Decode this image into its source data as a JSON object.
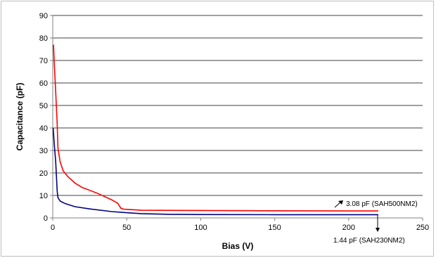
{
  "chart_data": {
    "type": "line",
    "title": "",
    "xlabel": "Bias (V)",
    "ylabel": "Capacitance (pF)",
    "xlim": [
      0,
      250
    ],
    "ylim": [
      0,
      90
    ],
    "x_ticks": [
      0,
      50,
      100,
      150,
      200,
      250
    ],
    "y_ticks": [
      0,
      10,
      20,
      30,
      40,
      50,
      60,
      70,
      80,
      90
    ],
    "x_tick_labels": [
      "0",
      "50",
      "100",
      "150",
      "200",
      "250"
    ],
    "y_tick_labels": [
      "0",
      "10",
      "20",
      "30",
      "40",
      "50",
      "60",
      "70",
      "80",
      "90"
    ],
    "grid": "horizontal",
    "legend": "none",
    "series": [
      {
        "color": "#ff0000",
        "points": [
          [
            0.5,
            77
          ],
          [
            1,
            69
          ],
          [
            2,
            56
          ],
          [
            3,
            42
          ],
          [
            3.5,
            31
          ],
          [
            5,
            25
          ],
          [
            7,
            21
          ],
          [
            10,
            18.5
          ],
          [
            15,
            15.5
          ],
          [
            20,
            13.5
          ],
          [
            30,
            11
          ],
          [
            40,
            8
          ],
          [
            44,
            6.5
          ],
          [
            46,
            4.3
          ],
          [
            48,
            3.9
          ],
          [
            50,
            3.8
          ],
          [
            60,
            3.4
          ],
          [
            100,
            3.3
          ],
          [
            150,
            3.2
          ],
          [
            200,
            3.1
          ],
          [
            220,
            3.08
          ]
        ]
      },
      {
        "color": "#000080",
        "points": [
          [
            0.3,
            40
          ],
          [
            1,
            33
          ],
          [
            2,
            25
          ],
          [
            3,
            12
          ],
          [
            3.5,
            9
          ],
          [
            5,
            7.5
          ],
          [
            8,
            6.5
          ],
          [
            15,
            5
          ],
          [
            25,
            4
          ],
          [
            40,
            2.8
          ],
          [
            50,
            2.3
          ],
          [
            60,
            1.9
          ],
          [
            80,
            1.6
          ],
          [
            100,
            1.5
          ],
          [
            150,
            1.45
          ],
          [
            200,
            1.44
          ],
          [
            220,
            1.44
          ]
        ]
      }
    ],
    "annotations": [
      {
        "text": "3.08 pF ",
        "suffix": "(SAH500NM2)",
        "arrow": "up-right"
      },
      {
        "text": "1.44 pF (SAH230NM2",
        "suffix": ")",
        "arrow": "down"
      }
    ]
  }
}
